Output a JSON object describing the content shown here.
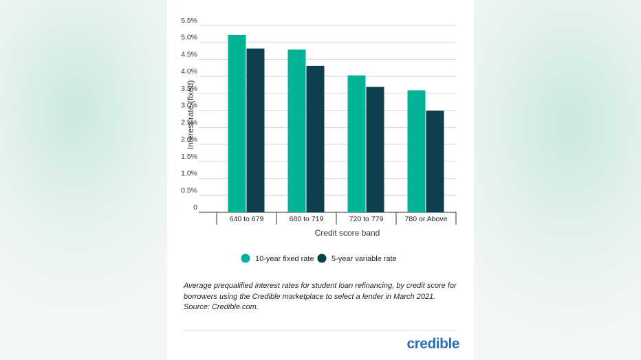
{
  "chart_data": {
    "type": "bar",
    "categories": [
      "640 to 679",
      "680 to 719",
      "720 to 779",
      "780 or Above"
    ],
    "series": [
      {
        "name": "10-year fixed rate",
        "color": "#00b495",
        "values": [
          5.22,
          4.79,
          4.03,
          3.59
        ]
      },
      {
        "name": "5-year variable rate",
        "color": "#0e3f4f",
        "values": [
          4.82,
          4.31,
          3.69,
          2.99
        ]
      }
    ],
    "xlabel": "Credit score band",
    "ylabel": "Interest rate (fixed)",
    "ylim": [
      0,
      5.5
    ],
    "yticks": [
      "0",
      "0.5%",
      "1.0%",
      "1.5%",
      "2.0%",
      "2.5%",
      "3.0%",
      "3.5%",
      "4.0%",
      "4.5%",
      "5.0%",
      "5.5%"
    ],
    "grid": true,
    "legend_position": "bottom"
  },
  "caption": "Average prequalified interest rates for student loan refinancing, by credit score for borrowers using the Credible marketplace to select a lender in March 2021. Source: Credible.com.",
  "logo_text": "credible"
}
